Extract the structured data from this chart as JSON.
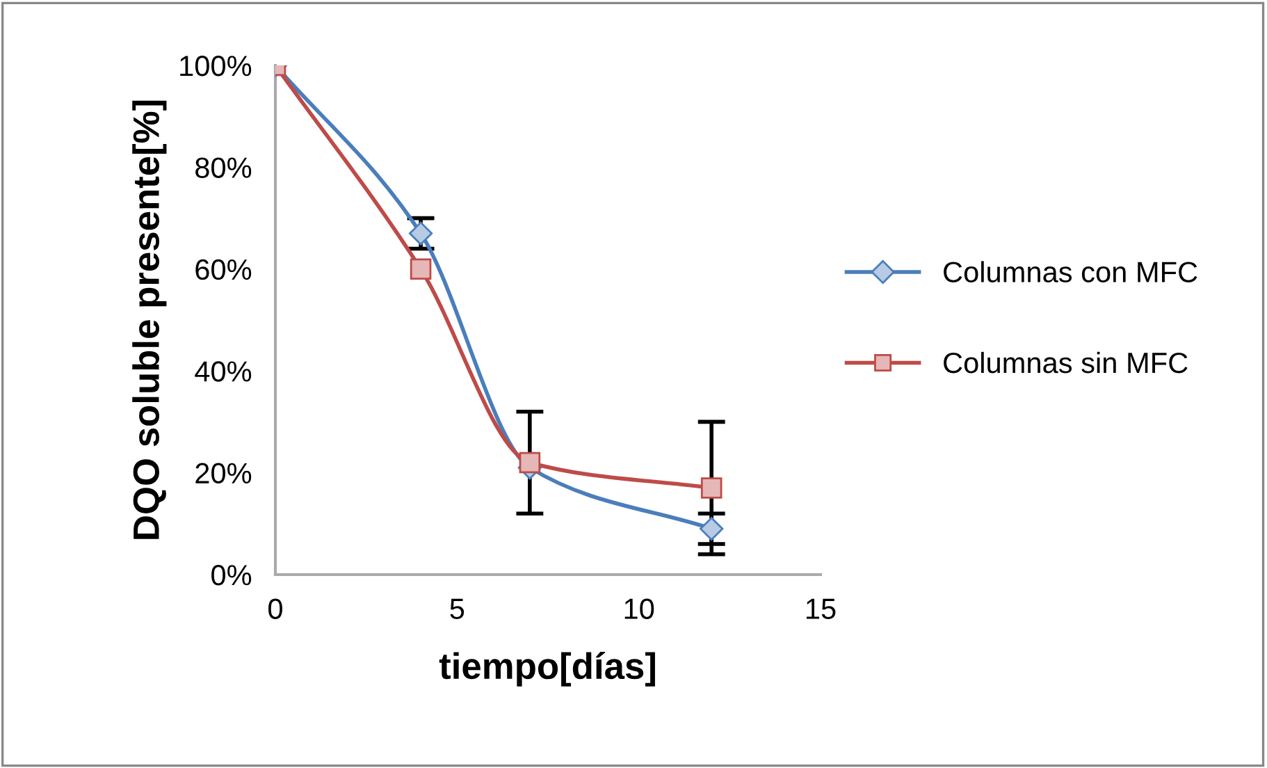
{
  "chart_data": {
    "type": "line",
    "xlabel": "tiempo[días]",
    "ylabel": "DQO soluble presente[%]",
    "x": [
      0,
      4,
      7,
      12
    ],
    "series": [
      {
        "name": "Columnas con MFC",
        "color": "#4a7ebb",
        "marker": "diamond",
        "values": [
          100,
          67,
          21,
          9
        ],
        "errors": [
          null,
          3,
          null,
          3
        ]
      },
      {
        "name": "Columnas sin MFC",
        "color": "#be4b48",
        "marker": "square",
        "values": [
          100,
          60,
          22,
          17
        ],
        "errors": [
          null,
          null,
          10,
          13
        ]
      }
    ],
    "xlim": [
      0,
      15
    ],
    "xticks": [
      0,
      5,
      10,
      15
    ],
    "ylim": [
      0,
      100
    ],
    "yticks": [
      {
        "value": 0,
        "label": "0%"
      },
      {
        "value": 20,
        "label": "20%"
      },
      {
        "value": 40,
        "label": "40%"
      },
      {
        "value": 60,
        "label": "60%"
      },
      {
        "value": 80,
        "label": "80%"
      },
      {
        "value": 100,
        "label": "100%"
      }
    ],
    "grid": false,
    "legend": "right",
    "line_style": "solid"
  }
}
